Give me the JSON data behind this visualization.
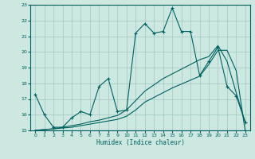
{
  "xlabel": "Humidex (Indice chaleur)",
  "bg_color": "#cce8e0",
  "grid_color": "#a0c8c0",
  "line_color": "#006060",
  "xlim": [
    -0.5,
    23.5
  ],
  "ylim": [
    15,
    23
  ],
  "x_ticks": [
    0,
    1,
    2,
    3,
    4,
    5,
    6,
    7,
    8,
    9,
    10,
    11,
    12,
    13,
    14,
    15,
    16,
    17,
    18,
    19,
    20,
    21,
    22,
    23
  ],
  "y_ticks": [
    15,
    16,
    17,
    18,
    19,
    20,
    21,
    22,
    23
  ],
  "curve1_x": [
    0,
    1,
    2,
    3,
    4,
    5,
    6,
    7,
    8,
    9,
    10,
    11,
    12,
    13,
    14,
    15,
    16,
    17,
    18,
    19,
    20,
    21,
    22,
    23
  ],
  "curve1_y": [
    17.3,
    16.0,
    15.2,
    15.2,
    15.8,
    16.2,
    16.0,
    17.8,
    18.3,
    16.2,
    16.3,
    21.2,
    21.8,
    21.2,
    21.3,
    22.8,
    21.3,
    21.3,
    18.5,
    19.4,
    20.3,
    17.8,
    17.2,
    15.5
  ],
  "curve2_x": [
    0,
    1,
    2,
    3,
    4,
    5,
    6,
    7,
    8,
    9,
    10,
    11,
    12,
    13,
    14,
    15,
    16,
    17,
    18,
    19,
    20,
    21,
    22,
    23
  ],
  "curve2_y": [
    15.0,
    15.0,
    15.0,
    15.0,
    15.0,
    15.0,
    15.0,
    15.0,
    15.0,
    15.0,
    15.0,
    15.0,
    15.0,
    15.0,
    15.0,
    15.0,
    15.0,
    15.0,
    15.0,
    15.0,
    15.0,
    15.0,
    15.0,
    15.0
  ],
  "curve3_x": [
    0,
    1,
    2,
    3,
    4,
    5,
    6,
    7,
    8,
    9,
    10,
    11,
    12,
    13,
    14,
    15,
    16,
    17,
    18,
    19,
    20,
    21,
    22,
    23
  ],
  "curve3_y": [
    15.0,
    15.05,
    15.1,
    15.15,
    15.2,
    15.3,
    15.4,
    15.5,
    15.6,
    15.7,
    15.9,
    16.3,
    16.8,
    17.1,
    17.4,
    17.7,
    17.95,
    18.2,
    18.45,
    19.2,
    20.1,
    20.1,
    18.8,
    14.9
  ],
  "curve4_x": [
    0,
    1,
    2,
    3,
    4,
    5,
    6,
    7,
    8,
    9,
    10,
    11,
    12,
    13,
    14,
    15,
    16,
    17,
    18,
    19,
    20,
    21,
    22,
    23
  ],
  "curve4_y": [
    15.0,
    15.05,
    15.1,
    15.2,
    15.3,
    15.4,
    15.55,
    15.65,
    15.8,
    15.95,
    16.3,
    16.9,
    17.5,
    17.9,
    18.3,
    18.6,
    18.9,
    19.2,
    19.5,
    19.7,
    20.4,
    19.4,
    17.4,
    15.5
  ]
}
